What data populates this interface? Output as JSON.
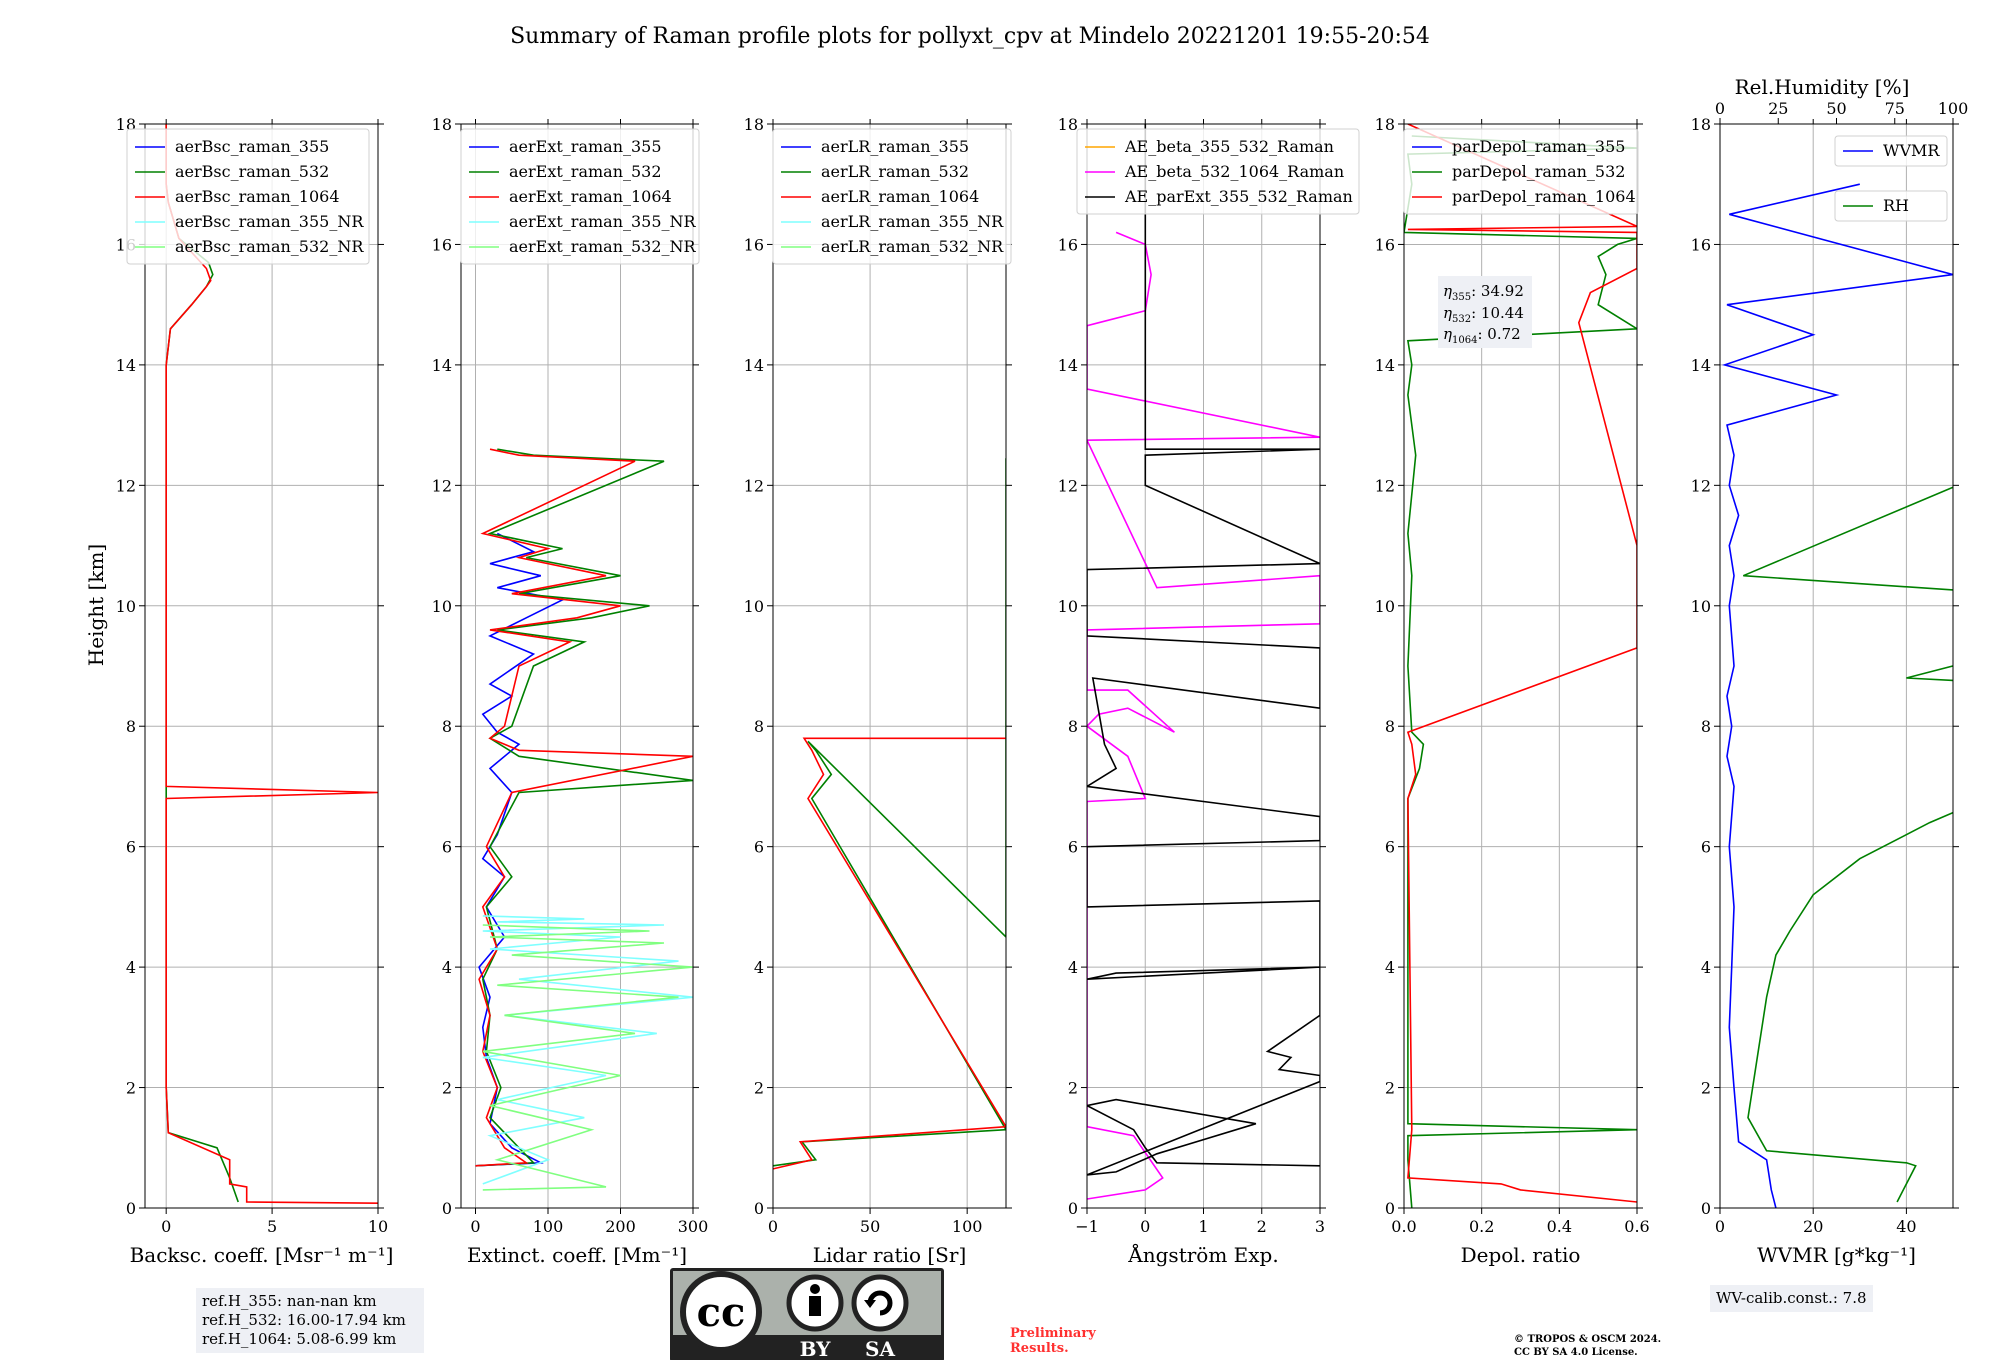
{
  "title": "Summary of Raman profile plots for pollyxt_cpv at Mindelo 20221201 19:55-20:54",
  "ylabel": "Height [km]",
  "colors": {
    "blue": "#0000ff",
    "green": "#008000",
    "red": "#ff0000",
    "cyan": "#7fffff",
    "lightgreen": "#80ff80",
    "orange": "#ffa500",
    "magenta": "#ff00ff",
    "black": "#000000"
  },
  "chart_data": [
    {
      "type": "line",
      "xlabel": "Backsc. coeff. [Msr⁻¹ m⁻¹]",
      "xlim": [
        -1,
        10
      ],
      "ylim": [
        0,
        18
      ],
      "xticks": [
        0,
        5,
        10
      ],
      "yticks": [
        0,
        2,
        4,
        6,
        8,
        10,
        12,
        14,
        16,
        18
      ],
      "grid": true,
      "legend_position": "top",
      "series": [
        {
          "name": "aerBsc_raman_355",
          "color": "#0000ff",
          "x": [],
          "y": []
        },
        {
          "name": "aerBsc_raman_532",
          "color": "#008000",
          "x": [
            3.4,
            3.0,
            2.4,
            0.1,
            0,
            0,
            0,
            0,
            0,
            0,
            0.2,
            1.2,
            1.9,
            2.2,
            2.0,
            0.6,
            0.1,
            0,
            0,
            0
          ],
          "y": [
            0.1,
            0.5,
            1.0,
            1.25,
            2.0,
            6.8,
            6.9,
            7.7,
            8.0,
            14.0,
            14.6,
            15.0,
            15.3,
            15.5,
            15.7,
            16.1,
            16.7,
            17.0,
            17.5,
            18.0
          ]
        },
        {
          "name": "aerBsc_raman_1064",
          "color": "#ff0000",
          "x": [
            10,
            3.8,
            3.8,
            3.0,
            3.0,
            0.1,
            0,
            0,
            10,
            0,
            0,
            0,
            0.2,
            1.2,
            1.9,
            2.1,
            1.9,
            0.6,
            0.1,
            0,
            0
          ],
          "y": [
            0.08,
            0.1,
            0.35,
            0.4,
            0.8,
            1.25,
            2.0,
            6.8,
            6.9,
            7.0,
            7.6,
            14.0,
            14.6,
            15.0,
            15.3,
            15.4,
            15.6,
            16.1,
            16.7,
            17.0,
            18.0
          ]
        },
        {
          "name": "aerBsc_raman_355_NR",
          "color": "#7fffff",
          "x": [],
          "y": []
        },
        {
          "name": "aerBsc_raman_532_NR",
          "color": "#80ff80",
          "x": [],
          "y": []
        }
      ]
    },
    {
      "type": "line",
      "xlabel": "Extinct. coeff. [Mm⁻¹]",
      "xlim": [
        -20,
        300
      ],
      "ylim": [
        0,
        18
      ],
      "xticks": [
        0,
        100,
        200,
        300
      ],
      "yticks": [
        0,
        2,
        4,
        6,
        8,
        10,
        12,
        14,
        16,
        18
      ],
      "grid": true,
      "legend_position": "top",
      "series": [
        {
          "name": "aerExt_raman_355",
          "color": "#0000ff",
          "x": [
            0,
            90,
            50,
            20,
            30,
            15,
            10,
            20,
            5,
            40,
            15,
            40,
            10,
            30,
            50,
            20,
            60,
            30,
            10,
            50,
            20,
            80,
            20,
            70,
            120,
            30,
            90,
            20,
            80,
            30
          ],
          "y": [
            0.7,
            0.75,
            1.0,
            1.4,
            2.0,
            2.5,
            3.0,
            3.5,
            4.0,
            4.5,
            5.0,
            5.5,
            5.8,
            6.2,
            6.9,
            7.3,
            7.7,
            7.9,
            8.2,
            8.5,
            8.7,
            9.2,
            9.5,
            9.8,
            10.1,
            10.3,
            10.5,
            10.7,
            10.9,
            11.2
          ]
        },
        {
          "name": "aerExt_raman_532",
          "color": "#008000",
          "x": [
            0,
            80,
            60,
            20,
            35,
            15,
            20,
            10,
            30,
            15,
            50,
            20,
            60,
            300,
            60,
            20,
            50,
            80,
            150,
            30,
            160,
            240,
            60,
            200,
            70,
            120,
            20,
            260,
            80,
            30
          ],
          "y": [
            0.7,
            0.75,
            1.0,
            1.5,
            2.0,
            2.6,
            3.2,
            3.8,
            4.3,
            5.0,
            5.5,
            6.0,
            6.9,
            7.1,
            7.5,
            7.8,
            8.0,
            9.0,
            9.4,
            9.6,
            9.8,
            10.0,
            10.2,
            10.5,
            10.8,
            10.95,
            11.2,
            12.4,
            12.5,
            12.6
          ]
        },
        {
          "name": "aerExt_raman_1064",
          "color": "#ff0000",
          "x": [
            0,
            70,
            40,
            15,
            30,
            10,
            20,
            5,
            30,
            10,
            40,
            15,
            50,
            300,
            60,
            20,
            40,
            60,
            130,
            20,
            140,
            200,
            50,
            180,
            60,
            100,
            10,
            220,
            60,
            20
          ],
          "y": [
            0.7,
            0.75,
            1.0,
            1.5,
            2.0,
            2.6,
            3.2,
            3.8,
            4.3,
            5.0,
            5.5,
            6.0,
            6.9,
            7.5,
            7.6,
            7.8,
            8.0,
            9.0,
            9.4,
            9.6,
            9.8,
            10.0,
            10.2,
            10.5,
            10.8,
            10.95,
            11.2,
            12.4,
            12.5,
            12.6
          ]
        },
        {
          "name": "aerExt_raman_355_NR",
          "color": "#7fffff",
          "x": [
            10,
            100,
            20,
            150,
            30,
            180,
            10,
            250,
            40,
            300,
            60,
            280,
            20,
            200,
            10,
            260,
            30,
            150,
            10
          ],
          "y": [
            0.4,
            0.8,
            1.2,
            1.5,
            1.8,
            2.2,
            2.5,
            2.9,
            3.2,
            3.5,
            3.8,
            4.1,
            4.3,
            4.5,
            4.6,
            4.7,
            4.75,
            4.8,
            4.85
          ]
        },
        {
          "name": "aerExt_raman_532_NR",
          "color": "#80ff80",
          "x": [
            10,
            180,
            30,
            160,
            20,
            200,
            10,
            220,
            40,
            280,
            30,
            300,
            50,
            260,
            20,
            240,
            10
          ],
          "y": [
            0.3,
            0.35,
            0.8,
            1.3,
            1.7,
            2.2,
            2.6,
            2.9,
            3.2,
            3.5,
            3.7,
            4.0,
            4.2,
            4.4,
            4.5,
            4.6,
            4.7
          ]
        }
      ]
    },
    {
      "type": "line",
      "xlabel": "Lidar ratio [Sr]",
      "xlim": [
        0,
        120
      ],
      "ylim": [
        0,
        18
      ],
      "xticks": [
        0,
        50,
        100
      ],
      "yticks": [
        0,
        2,
        4,
        6,
        8,
        10,
        12,
        14,
        16,
        18
      ],
      "grid": true,
      "legend_position": "top",
      "series": [
        {
          "name": "aerLR_raman_355",
          "color": "#0000ff",
          "x": [],
          "y": []
        },
        {
          "name": "aerLR_raman_532",
          "color": "#008000",
          "x": [
            0,
            22,
            15,
            120,
            20,
            30,
            22,
            18,
            120,
            120,
            120
          ],
          "y": [
            0.7,
            0.8,
            1.1,
            1.3,
            6.8,
            7.2,
            7.6,
            7.75,
            4.5,
            9.0,
            12.45
          ]
        },
        {
          "name": "aerLR_raman_1064",
          "color": "#ff0000",
          "x": [
            0,
            20,
            14,
            120,
            18,
            26,
            20,
            16,
            120
          ],
          "y": [
            0.65,
            0.8,
            1.1,
            1.35,
            6.8,
            7.2,
            7.6,
            7.8,
            7.8
          ]
        },
        {
          "name": "aerLR_raman_355_NR",
          "color": "#7fffff",
          "x": [],
          "y": []
        },
        {
          "name": "aerLR_raman_532_NR",
          "color": "#80ff80",
          "x": [],
          "y": []
        }
      ]
    },
    {
      "type": "line",
      "xlabel": "Ångström Exp.",
      "xlim": [
        -1,
        3
      ],
      "ylim": [
        0,
        18
      ],
      "xticks": [
        -1,
        0,
        1,
        2,
        3
      ],
      "yticks": [
        0,
        2,
        4,
        6,
        8,
        10,
        12,
        14,
        16,
        18
      ],
      "grid": true,
      "legend_position": "top",
      "series": [
        {
          "name": "AE_beta_355_532_Raman",
          "color": "#ffa500",
          "x": [],
          "y": []
        },
        {
          "name": "AE_beta_532_1064_Raman",
          "color": "#ff00ff",
          "x": [
            -1,
            0,
            0.3,
            -0.2,
            -1,
            -1,
            0,
            -0.3,
            -1,
            -0.8,
            -0.3,
            0.5,
            -0.3,
            -1,
            -1,
            3,
            3,
            0.2,
            -1,
            3,
            -1,
            -1,
            -0.8,
            0,
            0.1,
            0,
            -0.5
          ],
          "y": [
            0.15,
            0.3,
            0.5,
            1.2,
            1.35,
            6.75,
            6.8,
            7.5,
            8.0,
            8.2,
            8.3,
            7.9,
            8.6,
            8.6,
            9.6,
            9.7,
            10.5,
            10.3,
            12.75,
            12.8,
            13.6,
            14.65,
            14.7,
            14.9,
            15.5,
            16.0,
            16.2
          ]
        },
        {
          "name": "AE_parExt_355_532_Raman",
          "color": "#000000",
          "x": [
            3,
            0.2,
            0,
            -0.2,
            -1,
            -0.5,
            1.9,
            0.2,
            -0.5,
            -1,
            3,
            3,
            2.3,
            2.5,
            2.1,
            3,
            3,
            -1,
            -0.5,
            3,
            3,
            -1,
            -1,
            3,
            3,
            -1,
            -0.5,
            -0.7,
            -0.9,
            3,
            3,
            -1,
            -1,
            3,
            0,
            0,
            3,
            0,
            0,
            0
          ],
          "y": [
            0.7,
            0.75,
            1.0,
            1.3,
            1.7,
            1.8,
            1.4,
            0.9,
            0.6,
            0.55,
            2.1,
            2.2,
            2.3,
            2.5,
            2.6,
            3.2,
            4.0,
            3.8,
            3.9,
            4.0,
            5.1,
            5.0,
            6.0,
            6.1,
            6.5,
            7.0,
            7.3,
            7.7,
            8.8,
            8.3,
            9.3,
            9.5,
            10.6,
            10.7,
            12.0,
            12.5,
            12.6,
            12.6,
            16.2,
            18.0
          ]
        }
      ]
    },
    {
      "type": "line",
      "xlabel": "Depol. ratio",
      "xlim": [
        0,
        0.6
      ],
      "ylim": [
        0,
        18
      ],
      "xticks": [
        0.0,
        0.2,
        0.4,
        0.6
      ],
      "yticks": [
        0,
        2,
        4,
        6,
        8,
        10,
        12,
        14,
        16,
        18
      ],
      "grid": true,
      "legend_position": "top",
      "series": [
        {
          "name": "parDepol_raman_355",
          "color": "#0000ff",
          "x": [],
          "y": []
        },
        {
          "name": "parDepol_raman_532",
          "color": "#008000",
          "x": [
            0.02,
            0.01,
            0.01,
            0.6,
            0.01,
            0.01,
            0.04,
            0.05,
            0.02,
            0.01,
            0.02,
            0.01,
            0.03,
            0.01,
            0.02,
            0.01,
            0.6,
            0.5,
            0.52,
            0.5,
            0.55,
            0.6,
            0.0,
            0.02,
            0.01,
            0.6,
            0.02
          ],
          "y": [
            0.0,
            0.8,
            1.2,
            1.3,
            1.4,
            6.8,
            7.3,
            7.7,
            7.9,
            9.0,
            10.5,
            11.2,
            12.5,
            13.5,
            14.0,
            14.4,
            14.6,
            15.0,
            15.5,
            15.8,
            16.0,
            16.1,
            16.2,
            17.0,
            17.5,
            17.6,
            17.8
          ]
        },
        {
          "name": "parDepol_raman_1064",
          "color": "#ff0000",
          "x": [
            0.6,
            0.3,
            0.25,
            0.01,
            0.02,
            0.01,
            0.03,
            0.02,
            0.01,
            0.6,
            0.6,
            0.45,
            0.48,
            0.6,
            0.6,
            0.01,
            0.6,
            0.01
          ],
          "y": [
            0.1,
            0.3,
            0.4,
            0.5,
            1.3,
            6.8,
            7.2,
            7.7,
            7.9,
            9.3,
            11.0,
            14.7,
            15.2,
            15.6,
            16.2,
            16.25,
            16.3,
            18.0
          ]
        }
      ]
    },
    {
      "type": "line",
      "xlabel": "WVMR [g*kg⁻¹]",
      "x2label": "Rel.Humidity [%]",
      "xlim": [
        0,
        50
      ],
      "x2lim": [
        0,
        100
      ],
      "ylim": [
        0,
        18
      ],
      "xticks": [
        0,
        20,
        40
      ],
      "x2ticks": [
        0,
        25,
        50,
        75,
        100
      ],
      "yticks": [
        0,
        2,
        4,
        6,
        8,
        10,
        12,
        14,
        16,
        18
      ],
      "grid": true,
      "legend_position": "top-right",
      "series": [
        {
          "name": "WVMR",
          "color": "#0000ff",
          "x": [
            12,
            11,
            10,
            8,
            4,
            3,
            2,
            2.5,
            3,
            2,
            3,
            1.5,
            2.5,
            1.5,
            3,
            2,
            3,
            2,
            4,
            2,
            3,
            1.5,
            25,
            1,
            20,
            1.5,
            50,
            2,
            30
          ],
          "y": [
            0.0,
            0.3,
            0.8,
            0.9,
            1.1,
            2.0,
            3.0,
            4.0,
            5.0,
            6.0,
            7.0,
            7.5,
            8.0,
            8.5,
            9.0,
            10.0,
            10.5,
            11.0,
            11.5,
            12.0,
            12.5,
            13.0,
            13.5,
            14.0,
            14.5,
            15.0,
            15.5,
            16.5,
            17.0
          ]
        },
        {
          "name": "RH",
          "color": "#008000",
          "x": [
            38,
            42,
            40,
            10,
            6,
            8,
            10,
            12,
            15,
            20,
            30,
            45,
            60,
            100,
            60,
            90,
            40,
            80,
            100,
            5,
            100,
            100
          ],
          "y": [
            0.1,
            0.7,
            0.75,
            0.95,
            1.5,
            2.5,
            3.5,
            4.2,
            4.6,
            5.2,
            5.8,
            6.4,
            6.9,
            7.3,
            7.4,
            8.6,
            8.8,
            9.6,
            10.0,
            10.5,
            13.6,
            16.0
          ]
        }
      ]
    }
  ],
  "annotations": {
    "eta_355": ": 34.92",
    "eta_532": ": 10.44",
    "eta_1064": ": 0.72",
    "eta_symbol": "η",
    "sub_355": "355",
    "sub_532": "532",
    "sub_1064": "1064"
  },
  "ref_box": {
    "line1": "ref.H_355: nan-nan km",
    "line2": "ref.H_532: 16.00-17.94 km",
    "line3": "ref.H_1064: 5.08-6.99 km"
  },
  "wv_box": "WV-calib.const.: 7.8",
  "license_logo": {
    "cc": "cc",
    "by": "BY",
    "sa": "SA"
  },
  "preliminary": {
    "line1": "Preliminary",
    "line2": "Results."
  },
  "copyright": {
    "line1": "© TROPOS & OSCM 2024.",
    "line2": "CC BY SA 4.0 License."
  }
}
